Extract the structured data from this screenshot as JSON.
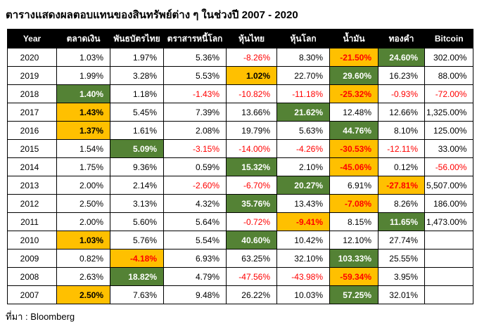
{
  "title": "ตารางแสดงผลตอบแทนของสินทรัพย์ต่าง ๆ ในช่วงปี 2007 - 2020",
  "source": "ที่มา : Bloomberg",
  "colors": {
    "highlight_green": "#548235",
    "highlight_orange": "#FFC000",
    "negative_text": "#FF0000",
    "header_bg": "#000000",
    "header_text": "#FFFFFF",
    "border": "#000000"
  },
  "chart_data": {
    "type": "table",
    "title": "ตารางแสดงผลตอบแทนของสินทรัพย์ต่าง ๆ ในช่วงปี 2007 - 2020",
    "columns": [
      "Year",
      "ตลาดเงิน",
      "พันธบัตรไทย",
      "ตราสารหนี้โลก",
      "หุ้นไทย",
      "หุ้นโลก",
      "น้ำมัน",
      "ทองคำ",
      "Bitcoin"
    ],
    "rows": [
      {
        "year": "2020",
        "cells": [
          {
            "v": "1.03%"
          },
          {
            "v": "1.97%"
          },
          {
            "v": "5.36%"
          },
          {
            "v": "-8.26%"
          },
          {
            "v": "8.30%"
          },
          {
            "v": "-21.50%",
            "hl": "orange"
          },
          {
            "v": "24.60%",
            "hl": "green"
          },
          {
            "v": "302.00%"
          }
        ]
      },
      {
        "year": "2019",
        "cells": [
          {
            "v": "1.99%"
          },
          {
            "v": "3.28%"
          },
          {
            "v": "5.53%"
          },
          {
            "v": "1.02%",
            "hl": "orange"
          },
          {
            "v": "22.70%"
          },
          {
            "v": "29.60%",
            "hl": "green"
          },
          {
            "v": "16.23%"
          },
          {
            "v": "88.00%"
          }
        ]
      },
      {
        "year": "2018",
        "cells": [
          {
            "v": "1.40%",
            "hl": "green"
          },
          {
            "v": "1.18%"
          },
          {
            "v": "-1.43%"
          },
          {
            "v": "-10.82%"
          },
          {
            "v": "-11.18%"
          },
          {
            "v": "-25.32%",
            "hl": "orange"
          },
          {
            "v": "-0.93%"
          },
          {
            "v": "-72.00%"
          }
        ]
      },
      {
        "year": "2017",
        "cells": [
          {
            "v": "1.43%",
            "hl": "orange"
          },
          {
            "v": "5.45%"
          },
          {
            "v": "7.39%"
          },
          {
            "v": "13.66%"
          },
          {
            "v": "21.62%",
            "hl": "green"
          },
          {
            "v": "12.48%"
          },
          {
            "v": "12.66%"
          },
          {
            "v": "1,325.00%"
          }
        ]
      },
      {
        "year": "2016",
        "cells": [
          {
            "v": "1.37%",
            "hl": "orange"
          },
          {
            "v": "1.61%"
          },
          {
            "v": "2.08%"
          },
          {
            "v": "19.79%"
          },
          {
            "v": "5.63%"
          },
          {
            "v": "44.76%",
            "hl": "green"
          },
          {
            "v": "8.10%"
          },
          {
            "v": "125.00%"
          }
        ]
      },
      {
        "year": "2015",
        "cells": [
          {
            "v": "1.54%"
          },
          {
            "v": "5.09%",
            "hl": "green"
          },
          {
            "v": "-3.15%"
          },
          {
            "v": "-14.00%"
          },
          {
            "v": "-4.26%"
          },
          {
            "v": "-30.53%",
            "hl": "orange"
          },
          {
            "v": "-12.11%"
          },
          {
            "v": "33.00%"
          }
        ]
      },
      {
        "year": "2014",
        "cells": [
          {
            "v": "1.75%"
          },
          {
            "v": "9.36%"
          },
          {
            "v": "0.59%"
          },
          {
            "v": "15.32%",
            "hl": "green"
          },
          {
            "v": "2.10%"
          },
          {
            "v": "-45.06%",
            "hl": "orange"
          },
          {
            "v": "0.12%"
          },
          {
            "v": "-56.00%"
          }
        ]
      },
      {
        "year": "2013",
        "cells": [
          {
            "v": "2.00%"
          },
          {
            "v": "2.14%"
          },
          {
            "v": "-2.60%"
          },
          {
            "v": "-6.70%"
          },
          {
            "v": "20.27%",
            "hl": "green"
          },
          {
            "v": "6.91%"
          },
          {
            "v": "-27.81%",
            "hl": "orange"
          },
          {
            "v": "5,507.00%"
          }
        ]
      },
      {
        "year": "2012",
        "cells": [
          {
            "v": "2.50%"
          },
          {
            "v": "3.13%"
          },
          {
            "v": "4.32%"
          },
          {
            "v": "35.76%",
            "hl": "green"
          },
          {
            "v": "13.43%"
          },
          {
            "v": "-7.08%",
            "hl": "orange"
          },
          {
            "v": "8.26%"
          },
          {
            "v": "186.00%"
          }
        ]
      },
      {
        "year": "2011",
        "cells": [
          {
            "v": "2.00%"
          },
          {
            "v": "5.60%"
          },
          {
            "v": "5.64%"
          },
          {
            "v": "-0.72%"
          },
          {
            "v": "-9.41%",
            "hl": "orange"
          },
          {
            "v": "8.15%"
          },
          {
            "v": "11.65%",
            "hl": "green"
          },
          {
            "v": "1,473.00%"
          }
        ]
      },
      {
        "year": "2010",
        "cells": [
          {
            "v": "1.03%",
            "hl": "orange"
          },
          {
            "v": "5.76%"
          },
          {
            "v": "5.54%"
          },
          {
            "v": "40.60%",
            "hl": "green"
          },
          {
            "v": "10.42%"
          },
          {
            "v": "12.10%"
          },
          {
            "v": "27.74%"
          },
          {
            "v": ""
          }
        ]
      },
      {
        "year": "2009",
        "cells": [
          {
            "v": "0.82%"
          },
          {
            "v": "-4.18%",
            "hl": "orange"
          },
          {
            "v": "6.93%"
          },
          {
            "v": "63.25%"
          },
          {
            "v": "32.10%"
          },
          {
            "v": "103.33%",
            "hl": "green"
          },
          {
            "v": "25.55%"
          },
          {
            "v": ""
          }
        ]
      },
      {
        "year": "2008",
        "cells": [
          {
            "v": "2.63%"
          },
          {
            "v": "18.82%",
            "hl": "green"
          },
          {
            "v": "4.79%"
          },
          {
            "v": "-47.56%"
          },
          {
            "v": "-43.98%"
          },
          {
            "v": "-59.34%",
            "hl": "orange"
          },
          {
            "v": "3.95%"
          },
          {
            "v": ""
          }
        ]
      },
      {
        "year": "2007",
        "cells": [
          {
            "v": "2.50%",
            "hl": "orange"
          },
          {
            "v": "7.63%"
          },
          {
            "v": "9.48%"
          },
          {
            "v": "26.22%"
          },
          {
            "v": "10.03%"
          },
          {
            "v": "57.25%",
            "hl": "green"
          },
          {
            "v": "32.01%"
          },
          {
            "v": ""
          }
        ]
      }
    ]
  }
}
